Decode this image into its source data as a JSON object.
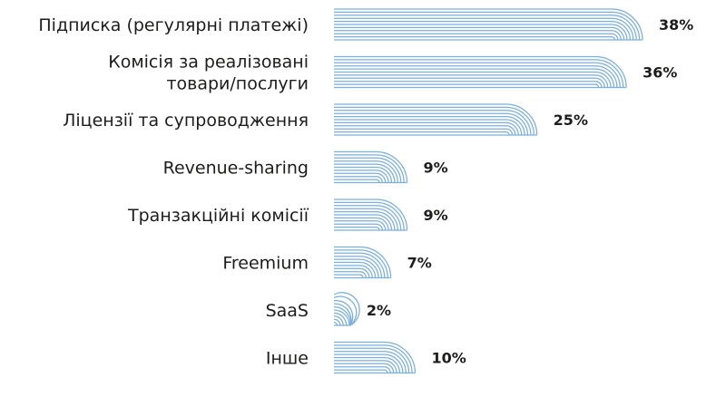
{
  "chart_data": {
    "type": "bar",
    "orientation": "horizontal",
    "categories": [
      [
        "Підписка (регулярні платежі)"
      ],
      [
        "Комісія за реалізовані",
        "товари/послуги"
      ],
      [
        "Ліцензії та супроводження"
      ],
      [
        "Revenue-sharing"
      ],
      [
        "Транзакційні комісії"
      ],
      [
        "Freemium"
      ],
      [
        "SaaS"
      ],
      [
        "Інше"
      ]
    ],
    "values": [
      38,
      36,
      25,
      9,
      9,
      7,
      2,
      10
    ],
    "value_labels": [
      "38%",
      "36%",
      "25%",
      "9%",
      "9%",
      "7%",
      "2%",
      "10%"
    ],
    "xlim": [
      0,
      38
    ],
    "grid": false,
    "legend": "none",
    "colors": {
      "bar_stroke": "#7aaedb",
      "text": "#1d1d1b"
    }
  }
}
